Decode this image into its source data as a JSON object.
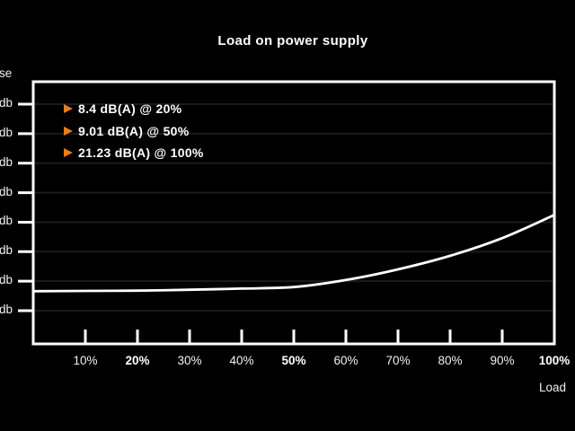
{
  "title": "Load on power supply",
  "colors": {
    "background": "#000000",
    "foreground": "#ffffff",
    "accent_orange": "#ea7d1a",
    "gridline": "#1b1b1b"
  },
  "legend_annotations": [
    {
      "text": "8.4 dB(A) @ 20%"
    },
    {
      "text": "9.01 dB(A) @ 50%"
    },
    {
      "text": "21.23 dB(A) @ 100%"
    }
  ],
  "y_axis": {
    "label_visible_text": "se",
    "tick_labels_visible": [
      "db",
      "db",
      "db",
      "db",
      "db",
      "db",
      "db",
      "db"
    ]
  },
  "x_axis": {
    "label": "Load",
    "tick_labels": [
      {
        "label": "10%",
        "bold": false
      },
      {
        "label": "20%",
        "bold": true
      },
      {
        "label": "30%",
        "bold": false
      },
      {
        "label": "40%",
        "bold": false
      },
      {
        "label": "50%",
        "bold": true
      },
      {
        "label": "60%",
        "bold": false
      },
      {
        "label": "70%",
        "bold": false
      },
      {
        "label": "80%",
        "bold": false
      },
      {
        "label": "90%",
        "bold": false
      },
      {
        "label": "100%",
        "bold": true
      }
    ]
  },
  "chart_data": {
    "type": "line",
    "title": "Load on power supply",
    "xlabel": "Load",
    "ylabel_visible": "se",
    "x": [
      0,
      10,
      20,
      30,
      40,
      50,
      60,
      70,
      80,
      90,
      100
    ],
    "series": [
      {
        "name": "Noise dB(A)",
        "values": [
          8.3,
          8.35,
          8.4,
          8.55,
          8.75,
          9.01,
          10.2,
          12.0,
          14.3,
          17.3,
          21.23
        ]
      }
    ],
    "labeled_points": [
      {
        "x": 20,
        "y": 8.4,
        "label": "8.4 dB(A) @ 20%"
      },
      {
        "x": 50,
        "y": 9.01,
        "label": "9.01 dB(A) @ 50%"
      },
      {
        "x": 100,
        "y": 21.23,
        "label": "21.23 dB(A) @ 100%"
      }
    ],
    "xlim": [
      0,
      100
    ],
    "ylim": [
      -0.63,
      43.81
    ],
    "y_tick_values_estimated": [
      40,
      35,
      30,
      25,
      20,
      15,
      10,
      5
    ],
    "grid": true,
    "legend_position": "top-left-inside",
    "line_color": "#ffffff"
  }
}
